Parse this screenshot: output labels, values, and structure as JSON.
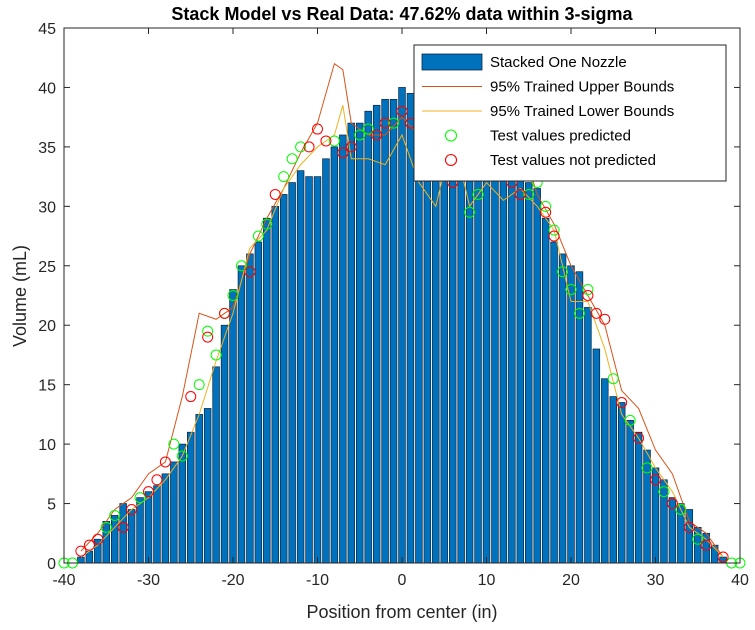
{
  "chart_data": {
    "type": "bar",
    "title": "Stack Model vs Real Data: 47.62% data within 3-sigma",
    "xlabel": "Position from center (in)",
    "ylabel": "Volume (mL)",
    "xlim": [
      -40,
      40
    ],
    "ylim": [
      0,
      45
    ],
    "xticks": [
      -40,
      -30,
      -20,
      -10,
      0,
      10,
      20,
      30,
      40
    ],
    "yticks": [
      0,
      5,
      10,
      15,
      20,
      25,
      30,
      35,
      40,
      45
    ],
    "grid": false,
    "legend_position": "top-right",
    "colors": {
      "bars": "#0072BD",
      "upper": "#D95319",
      "lower": "#EDB120",
      "predicted": "#00FF00",
      "not_predicted": "#FF0000"
    },
    "series": [
      {
        "name": "Stacked One Nozzle",
        "type": "bar",
        "x": [
          -38,
          -37,
          -36,
          -35,
          -34,
          -33,
          -32,
          -31,
          -30,
          -29,
          -28,
          -27,
          -26,
          -25,
          -24,
          -23,
          -22,
          -21,
          -20,
          -19,
          -18,
          -17,
          -16,
          -15,
          -14,
          -13,
          -12,
          -11,
          -10,
          -9,
          -8,
          -7,
          -6,
          -5,
          -4,
          -3,
          -2,
          -1,
          0,
          1,
          2,
          3,
          4,
          5,
          6,
          7,
          8,
          9,
          10,
          11,
          12,
          13,
          14,
          15,
          16,
          17,
          18,
          19,
          20,
          21,
          22,
          23,
          24,
          25,
          26,
          27,
          28,
          29,
          30,
          31,
          32,
          33,
          34,
          35,
          36,
          37,
          38
        ],
        "values": [
          0.5,
          1,
          2,
          3.5,
          4,
          5,
          4.5,
          5.5,
          6,
          6.5,
          7.5,
          8.5,
          10,
          11,
          12.5,
          13,
          16.5,
          20,
          23,
          25,
          26,
          27,
          29,
          30,
          31,
          32,
          33,
          32.5,
          32.5,
          34,
          35,
          36,
          37,
          37,
          38,
          38.5,
          39,
          39,
          40,
          39.5,
          39,
          38.5,
          38,
          37.5,
          37,
          36,
          35.5,
          35,
          34.5,
          34,
          33.5,
          33,
          32.5,
          32,
          31.5,
          29,
          27,
          26,
          25,
          24.5,
          21.5,
          18,
          15.5,
          14,
          13.5,
          12,
          11,
          9.5,
          8,
          7,
          5.5,
          5,
          4.5,
          3,
          2.5,
          1.5,
          0.5
        ]
      },
      {
        "name": "95% Trained Upper Bounds",
        "type": "line",
        "x": [
          -38,
          -36,
          -34,
          -32,
          -30,
          -28,
          -26,
          -24,
          -22,
          -20,
          -18,
          -16,
          -14,
          -12,
          -10,
          -8,
          -7,
          -6,
          -4,
          -2,
          0,
          2,
          4,
          6,
          8,
          10,
          12,
          14,
          16,
          18,
          20,
          22,
          24,
          26,
          28,
          30,
          32,
          34,
          36,
          38
        ],
        "values": [
          1,
          2.5,
          4.5,
          5.5,
          7.5,
          8.5,
          14,
          21,
          20.5,
          21.5,
          26,
          29,
          31.5,
          34.5,
          37,
          42,
          41.5,
          37,
          36,
          36,
          37.5,
          36,
          38,
          38,
          38,
          37,
          34.5,
          35.5,
          31,
          28.5,
          25,
          22.5,
          20,
          14.5,
          13,
          9.5,
          7.5,
          3.5,
          2.5,
          0.5
        ]
      },
      {
        "name": "95% Trained Lower Bounds",
        "type": "line",
        "x": [
          -38,
          -36,
          -34,
          -32,
          -30,
          -28,
          -26,
          -24,
          -22,
          -20,
          -18,
          -16,
          -14,
          -12,
          -10,
          -8,
          -7,
          -6,
          -4,
          -2,
          0,
          2,
          4,
          6,
          8,
          10,
          12,
          14,
          16,
          18,
          20,
          22,
          24,
          26,
          28,
          30,
          32,
          34,
          36,
          38
        ],
        "values": [
          0.5,
          1.5,
          3,
          4.5,
          5.5,
          7,
          9,
          12.5,
          17,
          21,
          26.5,
          28,
          31.5,
          33.5,
          35,
          36,
          38.5,
          34,
          34,
          33.5,
          36,
          32,
          30,
          36,
          30,
          32,
          30.5,
          31.5,
          30,
          28,
          22,
          22,
          18,
          12.5,
          10.5,
          8,
          6,
          3,
          2,
          0.5
        ]
      },
      {
        "name": "Test values predicted",
        "type": "scatter",
        "x": [
          -40,
          -39,
          -35,
          -34,
          -31,
          -27,
          -26,
          -24,
          -23,
          -22,
          -21,
          -20,
          -19,
          -17,
          -16,
          -14,
          -13,
          -12,
          -8,
          -5,
          -4,
          -1,
          2,
          5,
          8,
          9,
          10,
          12,
          15,
          16,
          17,
          18,
          19,
          20,
          21,
          22,
          25,
          27,
          29,
          31,
          33,
          35,
          39,
          40
        ],
        "values": [
          0,
          0,
          3,
          4,
          5.5,
          10,
          9,
          15,
          19.5,
          17.5,
          21,
          22.5,
          25,
          27.5,
          28.5,
          32.5,
          34,
          35,
          35.5,
          36,
          36.5,
          37,
          36,
          35,
          29.5,
          31,
          36,
          33.5,
          31,
          32,
          30,
          28,
          24.5,
          23,
          21,
          23,
          15.5,
          12,
          8,
          6,
          4.5,
          2,
          0,
          0
        ]
      },
      {
        "name": "Test values not predicted",
        "type": "scatter",
        "x": [
          -38,
          -37,
          -36,
          -33,
          -32,
          -30,
          -29,
          -28,
          -25,
          -23,
          -21,
          -18,
          -15,
          -11,
          -10,
          -9,
          -7,
          -6,
          -3,
          -2,
          0,
          1,
          3,
          6,
          7,
          11,
          13,
          14,
          16,
          17,
          18,
          22,
          23,
          24,
          26,
          28,
          30,
          32,
          34,
          36,
          38
        ],
        "values": [
          1,
          1.5,
          2,
          3,
          4.5,
          6,
          7,
          8.5,
          14,
          19,
          21,
          24.5,
          31,
          35,
          36.5,
          35.5,
          34.5,
          35,
          36,
          37,
          38,
          37,
          36,
          32,
          35,
          33,
          32,
          31,
          33,
          29.5,
          27.5,
          22.5,
          21,
          20.5,
          13.5,
          10.5,
          7,
          5,
          3,
          1.5,
          0.5
        ]
      }
    ]
  }
}
